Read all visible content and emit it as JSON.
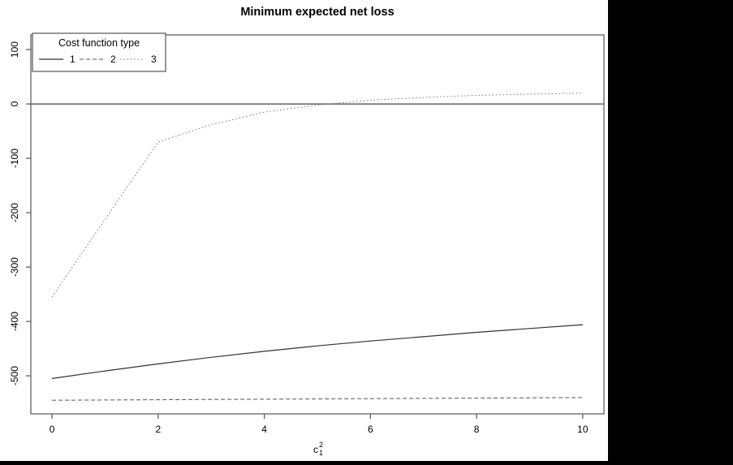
{
  "title": "Minimum expected net loss",
  "colors": {
    "canvas": "#ffffff",
    "surround": "#000000",
    "box": "#555555",
    "zero_line": "#444444",
    "solid_series": "#333333",
    "dashed_series": "#555555",
    "dotted_series": "#777777",
    "text": "#000000"
  },
  "chart_data": {
    "type": "line",
    "title": "Minimum expected net loss",
    "xlabel": {
      "base": "c",
      "sub": "1",
      "sup": "2"
    },
    "ylabel": "",
    "xlim": [
      -0.4,
      10.4
    ],
    "ylim": [
      -570,
      127
    ],
    "x_ticks": [
      0,
      2,
      4,
      6,
      8,
      10
    ],
    "y_ticks": [
      100,
      0,
      -100,
      -200,
      -300,
      -400,
      -500
    ],
    "grid": false,
    "reference_line_y": 0,
    "legend": {
      "title": "Cost function type",
      "position": "topleft",
      "entries": [
        {
          "label": "1",
          "style": "solid"
        },
        {
          "label": "2",
          "style": "dashed"
        },
        {
          "label": "3",
          "style": "dotted"
        }
      ]
    },
    "x": [
      0,
      1,
      2,
      3,
      4,
      5,
      6,
      7,
      8,
      9,
      10
    ],
    "series": [
      {
        "name": "1",
        "style": "solid",
        "values": [
          -505,
          -491,
          -478,
          -466,
          -455,
          -445,
          -436,
          -428,
          -420,
          -413,
          -406
        ]
      },
      {
        "name": "2",
        "style": "dashed",
        "values": [
          -545,
          -544.5,
          -544,
          -543.5,
          -543,
          -542.5,
          -542,
          -541.5,
          -541,
          -540.5,
          -540
        ]
      },
      {
        "name": "3",
        "style": "dotted",
        "values": [
          -355,
          -212,
          -70,
          -38,
          -15,
          -2,
          7,
          12,
          16,
          18,
          20
        ]
      }
    ]
  }
}
